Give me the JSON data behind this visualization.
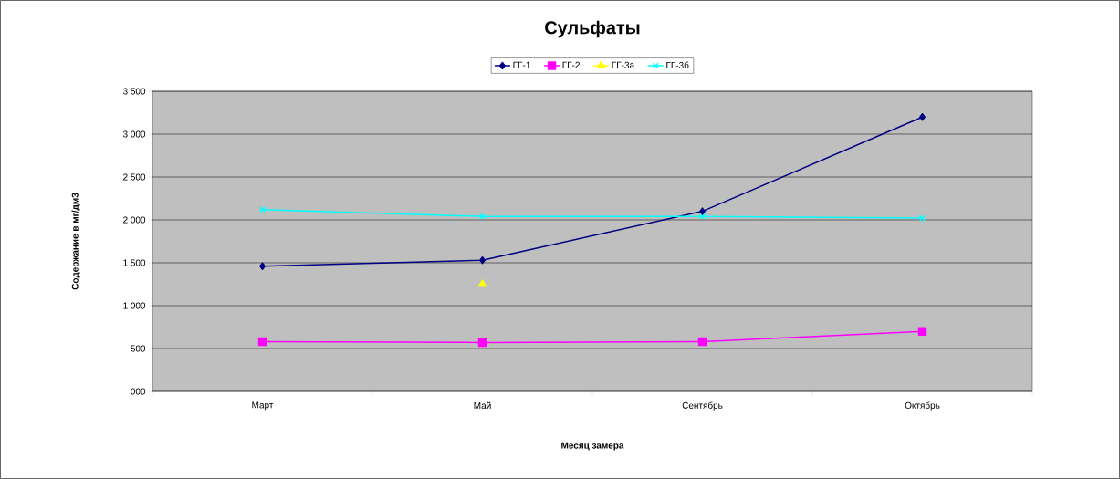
{
  "chart_data": {
    "type": "line",
    "title": "Сульфаты",
    "xlabel": "Месяц замера",
    "ylabel": "Содержание в мг/дм3",
    "categories": [
      "Март",
      "Май",
      "Сентябрь",
      "Октябрь"
    ],
    "series": [
      {
        "name": "ГГ-1",
        "color": "#000080",
        "marker": "diamond",
        "values": [
          1460,
          1530,
          2100,
          3200
        ]
      },
      {
        "name": "ГГ-2",
        "color": "#ff00ff",
        "marker": "square",
        "values": [
          580,
          570,
          580,
          700
        ]
      },
      {
        "name": "ГГ-3а",
        "color": "#ffff00",
        "marker": "triangle",
        "values": [
          null,
          1250,
          null,
          null
        ]
      },
      {
        "name": "ГГ-3б",
        "color": "#00ffff",
        "marker": "cross",
        "values": [
          2120,
          2040,
          2040,
          2020
        ]
      }
    ],
    "ylim": [
      0,
      3500
    ],
    "yticks": [
      {
        "value": 0,
        "label": "000"
      },
      500,
      {
        "value": 1000,
        "label": "1 000"
      },
      {
        "value": 1500,
        "label": "1 500"
      },
      {
        "value": 2000,
        "label": "2 000"
      },
      {
        "value": 2500,
        "label": "2 500"
      },
      {
        "value": 3000,
        "label": "3 000"
      },
      {
        "value": 3500,
        "label": "3 500"
      }
    ],
    "grid": "y",
    "legend": "top"
  }
}
